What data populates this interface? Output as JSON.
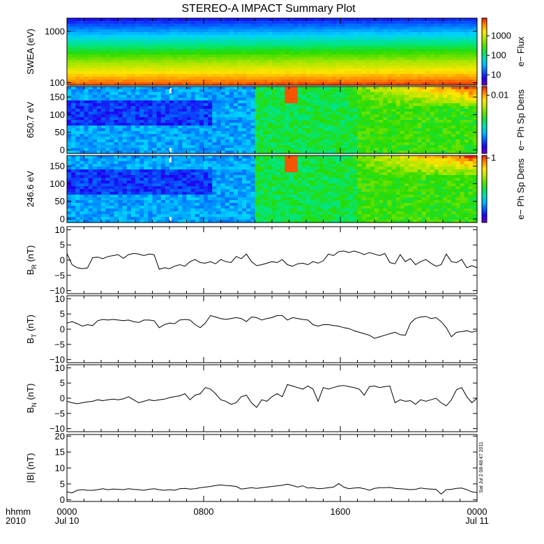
{
  "title": "STEREO-A IMPACT Summary Plot",
  "time_axis": {
    "row1_labels": [
      "hhmm",
      "0000",
      "0800",
      "1600",
      "0000"
    ],
    "row2_labels": [
      "2010",
      "Jul 10",
      "",
      "",
      "Jul 11"
    ],
    "range_hours": [
      0,
      24
    ],
    "major_ticks_hours": [
      0,
      8,
      16,
      24
    ],
    "minor_tick_step_hours": 1
  },
  "sidebar_text": "Sat Jul  2 08:48:47 2011",
  "colors": {
    "line": "#000000",
    "frame": "#000000",
    "gap_marker": "#ffffff"
  },
  "chart_data": [
    {
      "id": "swea",
      "type": "heatmap",
      "ylabel": "SWEA (eV)",
      "yscale": "log",
      "ylim": [
        90,
        1800
      ],
      "yticks": [
        {
          "value": 100,
          "label": "100"
        },
        {
          "value": 1000,
          "label": "1000"
        }
      ],
      "colorbar": {
        "label": "e− Flux",
        "scale": "log",
        "range": [
          3,
          8000
        ],
        "ticks": [
          {
            "value": 10,
            "label": "10"
          },
          {
            "value": 100,
            "label": "100"
          },
          {
            "value": 1000,
            "label": "1000"
          }
        ]
      },
      "description_profile": "energy_spectrum"
    },
    {
      "id": "pad650",
      "type": "heatmap",
      "ylabel": "650.7 eV",
      "ylim": [
        -10,
        180
      ],
      "yticks": [
        {
          "value": 0,
          "label": "0"
        },
        {
          "value": 50,
          "label": "50"
        },
        {
          "value": 100,
          "label": "100"
        },
        {
          "value": 150,
          "label": "150"
        }
      ],
      "colorbar": {
        "label": "e− Ph Sp Dens",
        "scale": "log",
        "range": [
          0.0001,
          0.02
        ],
        "ticks": [
          {
            "value": 0.01,
            "label": "0.01"
          }
        ]
      },
      "gap_hours": 6.05
    },
    {
      "id": "pad246",
      "type": "heatmap",
      "ylabel": "246.6 eV",
      "ylim": [
        -10,
        180
      ],
      "yticks": [
        {
          "value": 0,
          "label": "0"
        },
        {
          "value": 50,
          "label": "50"
        },
        {
          "value": 100,
          "label": "100"
        },
        {
          "value": 150,
          "label": "150"
        }
      ],
      "colorbar": {
        "label": "e− Ph Sp Dens",
        "scale": "log",
        "range": [
          0.01,
          1.2
        ],
        "ticks": [
          {
            "value": 1,
            "label": "1"
          }
        ]
      },
      "gap_hours": 6.05
    },
    {
      "id": "br",
      "type": "line",
      "ylabel_main": "B",
      "ylabel_sub": "R",
      "ylabel_unit": " (nT)",
      "ylim": [
        -11,
        11
      ],
      "yticks": [
        {
          "value": -10,
          "label": "−10"
        },
        {
          "value": -5,
          "label": "−5"
        },
        {
          "value": 0,
          "label": "0"
        },
        {
          "value": 5,
          "label": "5"
        },
        {
          "value": 10,
          "label": "10"
        }
      ],
      "x": [
        0,
        0.3,
        0.6,
        0.9,
        1.2,
        1.5,
        1.8,
        2.1,
        2.4,
        2.7,
        3.0,
        3.3,
        3.6,
        3.9,
        4.2,
        4.5,
        4.8,
        5.1,
        5.4,
        5.7,
        6.0,
        6.3,
        6.6,
        6.9,
        7.2,
        7.5,
        7.8,
        8.1,
        8.4,
        8.7,
        9.0,
        9.3,
        9.6,
        9.9,
        10.2,
        10.5,
        10.8,
        11.1,
        11.4,
        11.7,
        12.0,
        12.3,
        12.6,
        12.9,
        13.2,
        13.5,
        13.8,
        14.1,
        14.4,
        14.7,
        15.0,
        15.3,
        15.6,
        15.9,
        16.2,
        16.5,
        16.8,
        17.1,
        17.4,
        17.7,
        18.0,
        18.3,
        18.6,
        18.9,
        19.2,
        19.5,
        19.8,
        20.1,
        20.4,
        20.7,
        21.0,
        21.3,
        21.6,
        21.9,
        22.2,
        22.5,
        22.8,
        23.1,
        23.4,
        23.7,
        24.0
      ],
      "y": [
        2.2,
        -1.5,
        -2.5,
        -2.8,
        -2.6,
        0.8,
        1.0,
        0.5,
        1.2,
        1.5,
        1.8,
        0.6,
        1.8,
        2.2,
        2.0,
        1.5,
        2.0,
        1.8,
        -3.0,
        -2.5,
        -2.8,
        -2.0,
        -1.5,
        -2.0,
        -0.5,
        0.2,
        -0.8,
        -1.0,
        -0.5,
        -1.2,
        0.2,
        -0.5,
        -0.8,
        1.2,
        0.5,
        2.0,
        -0.5,
        -1.8,
        -1.5,
        -1.0,
        -0.5,
        -0.8,
        0.2,
        -1.5,
        -2.0,
        -1.2,
        -1.0,
        -1.5,
        -0.5,
        -1.0,
        -0.2,
        2.0,
        1.5,
        2.8,
        3.0,
        2.5,
        3.0,
        2.5,
        1.8,
        2.5,
        2.0,
        1.5,
        2.2,
        -0.8,
        -1.2,
        1.8,
        -0.5,
        0.5,
        -1.5,
        -0.5,
        0.2,
        -1.0,
        -2.0,
        -1.5,
        2.0,
        -0.5,
        -0.8,
        0.2,
        -2.5,
        -1.8,
        -2.5
      ]
    },
    {
      "id": "bt",
      "type": "line",
      "ylabel_main": "B",
      "ylabel_sub": "T",
      "ylabel_unit": " (nT)",
      "ylim": [
        -11,
        11
      ],
      "yticks": [
        {
          "value": -10,
          "label": "−10"
        },
        {
          "value": -5,
          "label": "−5"
        },
        {
          "value": 0,
          "label": "0"
        },
        {
          "value": 5,
          "label": "5"
        },
        {
          "value": 10,
          "label": "10"
        }
      ],
      "x": [
        0,
        0.3,
        0.6,
        0.9,
        1.2,
        1.5,
        1.8,
        2.1,
        2.4,
        2.7,
        3.0,
        3.3,
        3.6,
        3.9,
        4.2,
        4.5,
        4.8,
        5.1,
        5.4,
        5.7,
        6.0,
        6.3,
        6.6,
        6.9,
        7.2,
        7.5,
        7.8,
        8.1,
        8.4,
        8.7,
        9.0,
        9.3,
        9.6,
        9.9,
        10.2,
        10.5,
        10.8,
        11.1,
        11.4,
        11.7,
        12.0,
        12.3,
        12.6,
        12.9,
        13.2,
        13.5,
        13.8,
        14.1,
        14.4,
        14.7,
        15.0,
        15.3,
        15.6,
        15.9,
        16.2,
        16.5,
        16.8,
        17.1,
        17.4,
        17.7,
        18.0,
        18.3,
        18.6,
        18.9,
        19.2,
        19.5,
        19.8,
        20.1,
        20.4,
        20.7,
        21.0,
        21.3,
        21.6,
        21.9,
        22.2,
        22.5,
        22.8,
        23.1,
        23.4,
        23.7,
        24.0
      ],
      "y": [
        2.0,
        2.5,
        1.8,
        1.0,
        1.5,
        1.2,
        2.8,
        3.2,
        3.0,
        3.2,
        3.0,
        2.8,
        3.0,
        2.5,
        2.2,
        3.0,
        3.0,
        2.8,
        0.5,
        1.5,
        2.0,
        1.8,
        3.0,
        3.2,
        3.0,
        1.5,
        0.5,
        2.0,
        4.5,
        4.0,
        3.5,
        3.2,
        3.5,
        3.8,
        3.5,
        2.5,
        4.0,
        3.8,
        3.0,
        3.5,
        3.8,
        4.5,
        4.5,
        3.0,
        3.8,
        3.5,
        3.2,
        3.0,
        1.5,
        1.0,
        1.5,
        1.5,
        1.2,
        1.0,
        0.5,
        0.2,
        -0.5,
        -1.0,
        -1.5,
        -2.0,
        -3.0,
        -2.5,
        -2.0,
        -1.5,
        -1.0,
        -1.8,
        -2.0,
        2.0,
        3.5,
        4.0,
        4.2,
        3.5,
        3.8,
        2.5,
        0.5,
        -2.5,
        -1.0,
        -0.8,
        -0.5,
        -1.0,
        -0.5
      ]
    },
    {
      "id": "bn",
      "type": "line",
      "ylabel_main": "B",
      "ylabel_sub": "N",
      "ylabel_unit": " (nT)",
      "ylim": [
        -11,
        11
      ],
      "yticks": [
        {
          "value": -10,
          "label": "−10"
        },
        {
          "value": -5,
          "label": "−5"
        },
        {
          "value": 0,
          "label": "0"
        },
        {
          "value": 5,
          "label": "5"
        },
        {
          "value": 10,
          "label": "10"
        }
      ],
      "x": [
        0,
        0.3,
        0.6,
        0.9,
        1.2,
        1.5,
        1.8,
        2.1,
        2.4,
        2.7,
        3.0,
        3.3,
        3.6,
        3.9,
        4.2,
        4.5,
        4.8,
        5.1,
        5.4,
        5.7,
        6.0,
        6.3,
        6.6,
        6.9,
        7.2,
        7.5,
        7.8,
        8.1,
        8.4,
        8.7,
        9.0,
        9.3,
        9.6,
        9.9,
        10.2,
        10.5,
        10.8,
        11.1,
        11.4,
        11.7,
        12.0,
        12.3,
        12.6,
        12.9,
        13.2,
        13.5,
        13.8,
        14.1,
        14.4,
        14.7,
        15.0,
        15.3,
        15.6,
        15.9,
        16.2,
        16.5,
        16.8,
        17.1,
        17.4,
        17.7,
        18.0,
        18.3,
        18.6,
        18.9,
        19.2,
        19.5,
        19.8,
        20.1,
        20.4,
        20.7,
        21.0,
        21.3,
        21.6,
        21.9,
        22.2,
        22.5,
        22.8,
        23.1,
        23.4,
        23.7,
        24.0
      ],
      "y": [
        -1.0,
        -1.5,
        -1.8,
        -1.5,
        -1.2,
        -1.0,
        -0.5,
        -0.8,
        -0.5,
        -0.3,
        -0.5,
        -0.2,
        0.5,
        -0.5,
        -1.5,
        -1.0,
        -0.5,
        -0.8,
        -0.5,
        -0.3,
        0.2,
        0.5,
        0.8,
        1.5,
        -0.5,
        1.0,
        1.5,
        3.5,
        3.0,
        1.5,
        -0.5,
        -1.0,
        -2.0,
        -1.5,
        0.5,
        1.0,
        -1.5,
        -3.0,
        -0.5,
        -1.0,
        0.5,
        1.5,
        0.5,
        4.5,
        4.0,
        3.5,
        3.0,
        4.0,
        3.0,
        -1.0,
        3.5,
        3.0,
        3.5,
        4.0,
        4.2,
        3.8,
        3.5,
        3.0,
        1.0,
        3.8,
        4.0,
        3.5,
        3.8,
        4.0,
        -1.5,
        -0.5,
        -1.0,
        -0.8,
        -2.0,
        -0.5,
        -1.0,
        -0.5,
        0.0,
        -1.5,
        -2.5,
        -0.5,
        2.8,
        3.5,
        0.5,
        -1.5,
        0.0
      ]
    },
    {
      "id": "bmag",
      "type": "line",
      "ylabel": "|B| (nT)",
      "ylim": [
        -0.5,
        20.5
      ],
      "yticks": [
        {
          "value": 0,
          "label": "0"
        },
        {
          "value": 5,
          "label": "5"
        },
        {
          "value": 10,
          "label": "10"
        },
        {
          "value": 15,
          "label": "15"
        },
        {
          "value": 20,
          "label": "20"
        }
      ],
      "x": [
        0,
        0.3,
        0.6,
        0.9,
        1.2,
        1.5,
        1.8,
        2.1,
        2.4,
        2.7,
        3.0,
        3.3,
        3.6,
        3.9,
        4.2,
        4.5,
        4.8,
        5.1,
        5.4,
        5.7,
        6.0,
        6.3,
        6.6,
        6.9,
        7.2,
        7.5,
        7.8,
        8.1,
        8.4,
        8.7,
        9.0,
        9.3,
        9.6,
        9.9,
        10.2,
        10.5,
        10.8,
        11.1,
        11.4,
        11.7,
        12.0,
        12.3,
        12.6,
        12.9,
        13.2,
        13.5,
        13.8,
        14.1,
        14.4,
        14.7,
        15.0,
        15.3,
        15.6,
        15.9,
        16.2,
        16.5,
        16.8,
        17.1,
        17.4,
        17.7,
        18.0,
        18.3,
        18.6,
        18.9,
        19.2,
        19.5,
        19.8,
        20.1,
        20.4,
        20.7,
        21.0,
        21.3,
        21.6,
        21.9,
        22.2,
        22.5,
        22.8,
        23.1,
        23.4,
        23.7,
        24.0
      ],
      "y": [
        2.5,
        2.2,
        3.0,
        3.2,
        3.0,
        3.0,
        3.2,
        3.5,
        3.2,
        3.4,
        3.3,
        3.2,
        3.5,
        3.3,
        3.2,
        3.0,
        3.3,
        3.5,
        3.2,
        3.0,
        3.2,
        3.0,
        3.5,
        3.6,
        3.4,
        3.5,
        3.8,
        4.0,
        4.2,
        4.5,
        4.7,
        4.5,
        4.4,
        4.2,
        3.4,
        3.6,
        3.8,
        3.6,
        3.8,
        4.0,
        4.2,
        4.4,
        4.6,
        4.9,
        4.5,
        4.0,
        4.4,
        3.7,
        3.8,
        3.5,
        3.6,
        3.8,
        4.0,
        5.1,
        4.0,
        3.5,
        3.7,
        3.8,
        3.5,
        3.0,
        3.6,
        3.8,
        3.8,
        3.9,
        3.6,
        3.5,
        3.4,
        3.2,
        3.3,
        3.7,
        3.5,
        3.4,
        3.3,
        1.8,
        3.2,
        3.3,
        3.6,
        3.7,
        3.2,
        2.5,
        2.3
      ]
    }
  ]
}
